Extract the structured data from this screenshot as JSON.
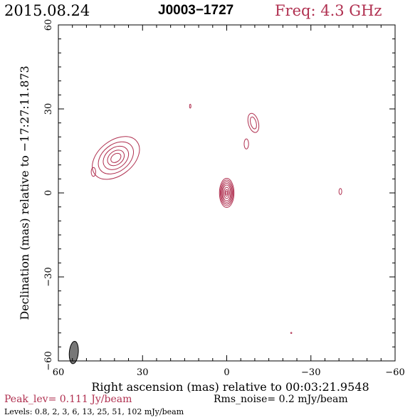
{
  "header": {
    "date": "2015.08.24",
    "source": "J0003−1727",
    "freq": "Freq: 4.3 GHz"
  },
  "colors": {
    "contour": "#b03050",
    "beam": "#777777",
    "axis": "#000000"
  },
  "footer": {
    "peak": "Peak_lev=  0.111 Jy/beam",
    "rms": "Rms_noise=   0.2 mJy/beam",
    "levels": "Levels: 0.8,   2,   3,   6,  13,  25,  51, 102 mJy/beam"
  },
  "chart_data": {
    "type": "contour",
    "title": "J0003−1727",
    "xlabel": "Right ascension (mas) relative to 00:03:21.9548",
    "ylabel": "Declination (mas) relative to −17:27:11.873",
    "xlim": [
      60,
      -60
    ],
    "ylim": [
      -60,
      60
    ],
    "x_ticks": [
      60,
      30,
      0,
      -30,
      -60
    ],
    "y_ticks": [
      60,
      30,
      0,
      -30,
      -60
    ],
    "x_tick_labels": [
      "60",
      "30",
      "0",
      "−30",
      "−60"
    ],
    "y_tick_labels": [
      "60",
      "30",
      "0",
      "−30",
      "−60"
    ],
    "contour_levels_mJy": [
      0.8,
      2,
      3,
      6,
      13,
      25,
      51,
      102
    ],
    "peak_Jy_per_beam": 0.111,
    "rms_mJy_per_beam": 0.2,
    "components": [
      {
        "name": "core",
        "x": 0,
        "y": 0,
        "rx": [
          2.6,
          2.3,
          2.0,
          1.7,
          1.4,
          1.0,
          0.6,
          0.3
        ],
        "ry": [
          5.2,
          4.6,
          4.0,
          3.4,
          2.8,
          2.0,
          1.2,
          0.6
        ],
        "angle": 0
      },
      {
        "name": "jet-blob-ne",
        "x": 39.5,
        "y": 12.5,
        "rx": [
          9.5,
          7.0,
          5.0,
          3.3,
          2.0
        ],
        "ry": [
          6.2,
          4.8,
          3.6,
          2.4,
          1.4
        ],
        "angle": -38
      },
      {
        "name": "jet-knot-w1",
        "x": -9.5,
        "y": 25,
        "rx": [
          1.8,
          1.0
        ],
        "ry": [
          3.5,
          2.2
        ],
        "angle": -15
      },
      {
        "name": "jet-knot-w2",
        "x": -7,
        "y": 17.5,
        "rx": [
          0.8
        ],
        "ry": [
          1.8
        ],
        "angle": 0
      },
      {
        "name": "jet-knot-e",
        "x": 47.5,
        "y": 7.5,
        "rx": [
          0.8
        ],
        "ry": [
          1.6
        ],
        "angle": 0
      },
      {
        "name": "spot-n",
        "x": 13,
        "y": 31,
        "rx": [
          0.25
        ],
        "ry": [
          0.7
        ],
        "angle": 0
      },
      {
        "name": "spot-east",
        "x": -40.5,
        "y": 0.5,
        "rx": [
          0.5
        ],
        "ry": [
          1.1
        ],
        "angle": 0
      },
      {
        "name": "spot-south",
        "x": -23,
        "y": -50,
        "rx": [
          0.2
        ],
        "ry": [
          0.2
        ],
        "angle": 0
      }
    ],
    "beam": {
      "x": 54.5,
      "y": -57,
      "major": 4.0,
      "minor": 1.6,
      "angle": 5
    }
  }
}
